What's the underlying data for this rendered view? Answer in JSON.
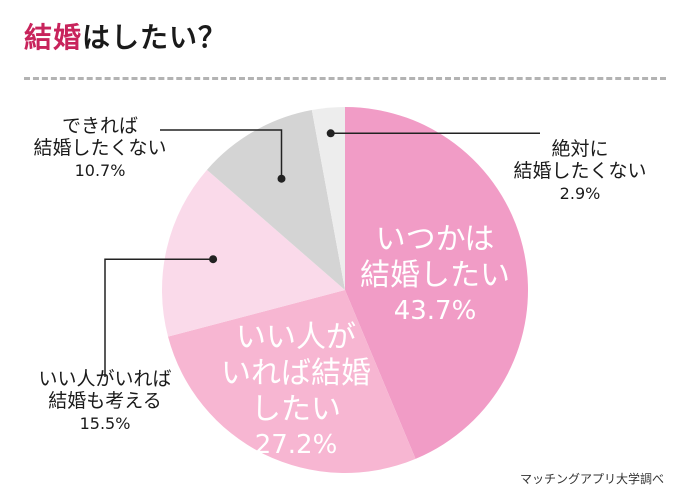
{
  "title": {
    "accent": "結婚",
    "rest": "はしたい？"
  },
  "source": "マッチングアプリ大学調べ",
  "colors": {
    "title_accent": "#c8245c",
    "slice_1": "#f19cc6",
    "slice_2": "#f7b6d2",
    "slice_3": "#fadaea",
    "slice_4": "#d4d4d4",
    "slice_5": "#ededed"
  },
  "chart_data": {
    "type": "pie",
    "title": "結婚はしたい？",
    "slices": [
      {
        "name_line1": "いつかは",
        "name_line2": "結婚したい",
        "value": 43.7,
        "value_label": "43.7%"
      },
      {
        "name_line1": "いい人が",
        "name_line2": "いれば結婚",
        "name_line3": "したい",
        "value": 27.2,
        "value_label": "27.2%"
      },
      {
        "name_line1": "いい人がいれば",
        "name_line2": "結婚も考える",
        "value": 15.5,
        "value_label": "15.5%"
      },
      {
        "name_line1": "できれば",
        "name_line2": "結婚したくない",
        "value": 10.7,
        "value_label": "10.7%"
      },
      {
        "name_line1": "絶対に",
        "name_line2": "結婚したくない",
        "value": 2.9,
        "value_label": "2.9%"
      }
    ]
  }
}
